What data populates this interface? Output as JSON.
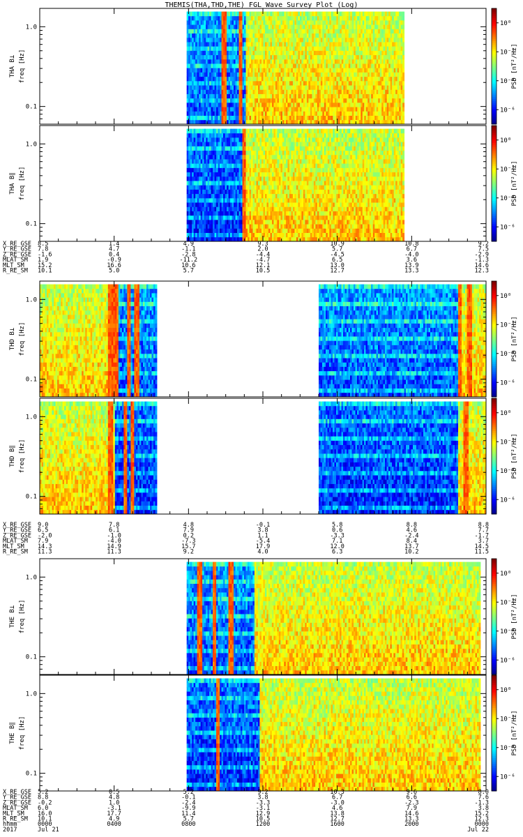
{
  "title": "THEMIS(THA,THD,THE) FGL Wave Survey Plot (Log)",
  "colors": {
    "frame": "#000000",
    "background": "#ffffff"
  },
  "chart_data": {
    "type": "heatmap",
    "x_axis": {
      "date_start": "2017 Jul 21",
      "date_end": "Jul 22",
      "tick_hours": [
        0,
        4,
        8,
        12,
        16,
        20,
        24
      ],
      "tick_labels": [
        "0000",
        "0400",
        "0800",
        "1200",
        "1600",
        "2000",
        "0000"
      ]
    },
    "y_axis": {
      "scale": "log",
      "range_hz": [
        0.06,
        1.7
      ],
      "tick_values": [
        0.1,
        1.0
      ],
      "tick_labels": [
        "0.1",
        "1.0"
      ],
      "label": "freq [Hz]"
    },
    "colorbar": {
      "label": "PSD [nT²/Hz]",
      "scale": "log",
      "tick_labels": [
        "10⁰",
        "10⁻²",
        "10⁻⁴",
        "10⁻⁶"
      ],
      "tick_exponents": [
        0,
        -2,
        -4,
        -6
      ],
      "exponent_range": [
        -7,
        1
      ]
    },
    "panels": [
      {
        "name": "THA B⊥",
        "ylabel": "THA B⊥",
        "probe": "THA",
        "component": "perp",
        "segments": [
          {
            "start_h": 7.9,
            "end_h": 19.6,
            "transition_h": 11.1
          }
        ],
        "bright_lines_h": [
          10.8,
          9.9
        ]
      },
      {
        "name": "THA B∥",
        "ylabel": "THA B∥",
        "probe": "THA",
        "component": "par",
        "segments": [
          {
            "start_h": 7.9,
            "end_h": 19.6,
            "transition_h": 11.1
          }
        ],
        "bright_lines_h": [
          11.0
        ]
      },
      {
        "name": "THD B⊥",
        "ylabel": "THD B⊥",
        "probe": "THD",
        "component": "perp",
        "segments": [
          {
            "start_h": 0.0,
            "end_h": 6.3,
            "transition_h": 4.0,
            "reverse": true
          },
          {
            "start_h": 15.0,
            "end_h": 24.0,
            "transition_h": 22.5
          }
        ],
        "bright_lines_h": [
          3.8,
          4.1,
          4.8,
          5.2,
          22.6,
          23.1
        ]
      },
      {
        "name": "THD B∥",
        "ylabel": "THD B∥",
        "probe": "THD",
        "component": "par",
        "segments": [
          {
            "start_h": 0.0,
            "end_h": 6.3,
            "transition_h": 4.0,
            "reverse": true
          },
          {
            "start_h": 15.0,
            "end_h": 24.0,
            "transition_h": 22.5
          }
        ],
        "bright_lines_h": [
          3.8,
          4.6,
          5.0,
          22.9
        ]
      },
      {
        "name": "THE B⊥",
        "ylabel": "THE B⊥",
        "probe": "THE",
        "component": "perp",
        "segments": [
          {
            "start_h": 7.9,
            "end_h": 23.7,
            "transition_h": 11.5
          }
        ],
        "bright_lines_h": [
          8.6,
          9.4,
          10.3
        ]
      },
      {
        "name": "THE B∥",
        "ylabel": "THE B∥",
        "probe": "THE",
        "component": "par",
        "segments": [
          {
            "start_h": 7.9,
            "end_h": 23.7,
            "transition_h": 11.8
          }
        ],
        "bright_lines_h": [
          9.6
        ]
      }
    ],
    "ephemeris": [
      {
        "probe": "THA",
        "labels": [
          "X_RE_GSE",
          "Y_RE_GSE",
          "Z_RE_GSE",
          "MLAT_SM",
          "MLT_SM",
          "R_RE_SM"
        ],
        "rows": [
          [
            "8.5",
            "1.4",
            "4.9",
            "9.3",
            "10.9",
            "10.8",
            "9.2"
          ],
          [
            "7.8",
            "4.7",
            "-1.1",
            "2.0",
            "5.7",
            "6.7",
            "7.5"
          ],
          [
            "-1.6",
            "0.4",
            "-2.8",
            "-4.4",
            "-4.5",
            "-4.0",
            "-2.9"
          ],
          [
            "1.9",
            "-0.9",
            "-11.2",
            "-4.7",
            "6.5",
            "3.6",
            "-1.3"
          ],
          [
            "15.2",
            "16.6",
            "10.6",
            "12.1",
            "13.0",
            "13.9",
            "14.6"
          ],
          [
            "10.1",
            "5.0",
            "5.7",
            "10.5",
            "12.7",
            "13.3",
            "12.3"
          ]
        ]
      },
      {
        "probe": "THD",
        "labels": [
          "X_RE_GSE",
          "Y_RE_GSE",
          "Z_RE_GSE",
          "MLAT_SM",
          "MLT_SM",
          "R_RE_SM"
        ],
        "rows": [
          [
            "9.0",
            "7.8",
            "4.8",
            "-0.1",
            "5.8",
            "8.8",
            "8.8"
          ],
          [
            "6.5",
            "6.1",
            "7.9",
            "3.8",
            "0.6",
            "4.6",
            "7.7"
          ],
          [
            "-2.0",
            "-1.0",
            "0.2",
            "1.1",
            "-3.3",
            "-2.4",
            "-1.7"
          ],
          [
            "7.9",
            "-4.0",
            "-7.3",
            "-5.4",
            "7.1",
            "8.4",
            "3.7"
          ],
          [
            "14.3",
            "14.9",
            "15.7",
            "17.9",
            "12.0",
            "13.7",
            "14.5"
          ],
          [
            "11.3",
            "11.3",
            "9.2",
            "4.0",
            "6.3",
            "10.2",
            "11.5"
          ]
        ]
      },
      {
        "probe": "THE",
        "labels": [
          "X_RE_GSE",
          "Y_RE_GSE",
          "Z_RE_GSE",
          "MLAT_SM",
          "MLT_SM",
          "R_RE_SM",
          "hhmm",
          "2017"
        ],
        "rows": [
          [
            "5.2",
            "0.5",
            "5.2",
            "9.2",
            "10.3",
            "9.6",
            "8.0"
          ],
          [
            "8.8",
            "4.8",
            "-0.1",
            "3.8",
            "6.7",
            "6.6",
            "7.6"
          ],
          [
            "-0.2",
            "1.0",
            "-2.4",
            "-3.3",
            "-3.0",
            "-2.3",
            "-1.3"
          ],
          [
            "6.0",
            "-3.1",
            "-9.9",
            "-3.1",
            "4.6",
            "7.9",
            "3.8"
          ],
          [
            "16.0",
            "17.7",
            "11.4",
            "12.9",
            "13.8",
            "14.6",
            "15.2"
          ],
          [
            "10.1",
            "4.9",
            "5.7",
            "10.5",
            "12.7",
            "13.3",
            "12.3"
          ],
          [
            "0000",
            "0400",
            "0800",
            "1200",
            "1600",
            "2000",
            "0000"
          ],
          [
            "Jul 21",
            "",
            "",
            "",
            "",
            "",
            "Jul 22"
          ]
        ]
      }
    ]
  }
}
